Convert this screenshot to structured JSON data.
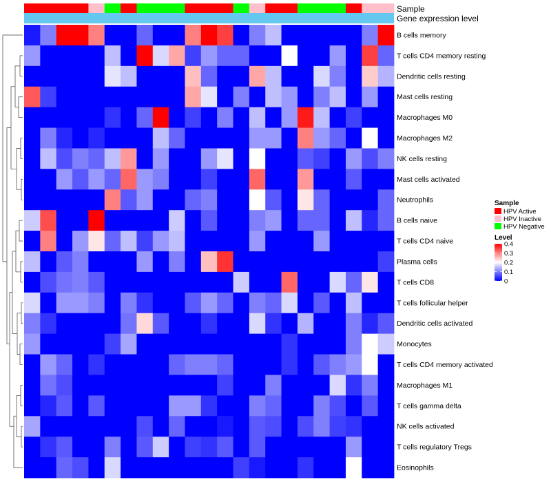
{
  "chart_data": {
    "type": "heatmap",
    "annotation_titles": {
      "sample": "Sample",
      "expression": "Gene expression level"
    },
    "sample_groups": [
      "HPV Active",
      "HPV Active",
      "HPV Active",
      "HPV Active",
      "HPV Inactive",
      "HPV Negative",
      "HPV Active",
      "HPV Negative",
      "HPV Negative",
      "HPV Negative",
      "HPV Active",
      "HPV Active",
      "HPV Active",
      "HPV Negative",
      "HPV Inactive",
      "HPV Active",
      "HPV Active",
      "HPV Negative",
      "HPV Negative",
      "HPV Negative",
      "HPV Active",
      "HPV Inactive",
      "HPV Inactive"
    ],
    "rows": [
      "B cells memory",
      "T cells CD4 memory resting",
      "Dendritic cells resting",
      "Mast cells resting",
      "Macrophages M0",
      "Macrophages M2",
      "NK cells resting",
      "Mast cells activated",
      "Neutrophils",
      "B cells naive",
      "T cells CD4 naive",
      "Plasma cells",
      "T cells CD8",
      "T cells follicular helper",
      "Dendritic cells activated",
      "Monocytes",
      "T cells CD4 memory activated",
      "Macrophages M1",
      "T cells gamma delta",
      "NK cells activated",
      "T cells regulatory  Tregs",
      "Eosinophils"
    ],
    "values": [
      [
        0.02,
        0.1,
        0.4,
        0.4,
        0.3,
        0.0,
        0.0,
        0.08,
        0.0,
        0.0,
        0.3,
        0.4,
        0.35,
        0.0,
        0.1,
        0.15,
        0.0,
        0.0,
        0.0,
        0.0,
        0.0,
        0.1,
        0.4
      ],
      [
        0.12,
        0.0,
        0.0,
        0.0,
        0.0,
        0.15,
        0.0,
        0.4,
        0.17,
        0.27,
        0.05,
        0.12,
        0.08,
        0.08,
        0.0,
        0.0,
        0.2,
        0.0,
        0.0,
        0.12,
        0.0,
        0.35,
        0.08
      ],
      [
        0.0,
        0.0,
        0.0,
        0.0,
        0.0,
        0.18,
        0.15,
        0.0,
        0.0,
        0.0,
        0.25,
        0.08,
        0.0,
        0.0,
        0.27,
        0.15,
        0.0,
        0.0,
        0.17,
        0.1,
        0.0,
        0.24,
        0.14
      ],
      [
        0.33,
        0.05,
        0.0,
        0.0,
        0.0,
        0.0,
        0.0,
        0.0,
        0.0,
        0.0,
        0.27,
        0.18,
        0.0,
        0.1,
        0.0,
        0.15,
        0.12,
        0.0,
        0.1,
        0.15,
        0.0,
        0.12,
        0.0
      ],
      [
        0.0,
        0.0,
        0.0,
        0.0,
        0.0,
        0.04,
        0.0,
        0.08,
        0.4,
        0.0,
        0.05,
        0.0,
        0.1,
        0.0,
        0.15,
        0.0,
        0.12,
        0.38,
        0.15,
        0.0,
        0.05,
        0.0,
        0.0
      ],
      [
        0.0,
        0.1,
        0.03,
        0.0,
        0.03,
        0.0,
        0.0,
        0.0,
        0.15,
        0.08,
        0.0,
        0.0,
        0.0,
        0.0,
        0.12,
        0.12,
        0.0,
        0.3,
        0.12,
        0.08,
        0.0,
        0.2,
        0.0
      ],
      [
        0.0,
        0.15,
        0.06,
        0.1,
        0.08,
        0.15,
        0.28,
        0.0,
        0.12,
        0.0,
        0.0,
        0.12,
        0.18,
        0.0,
        0.2,
        0.0,
        0.0,
        0.07,
        0.05,
        0.0,
        0.12,
        0.06,
        0.1
      ],
      [
        0.0,
        0.0,
        0.12,
        0.07,
        0.12,
        0.08,
        0.32,
        0.12,
        0.1,
        0.0,
        0.0,
        0.05,
        0.0,
        0.0,
        0.32,
        0.0,
        0.0,
        0.28,
        0.0,
        0.0,
        0.07,
        0.0,
        0.0
      ],
      [
        0.0,
        0.0,
        0.0,
        0.0,
        0.0,
        0.3,
        0.07,
        0.12,
        0.0,
        0.0,
        0.08,
        0.1,
        0.0,
        0.0,
        0.2,
        0.07,
        0.0,
        0.22,
        0.08,
        0.0,
        0.0,
        0.0,
        0.08
      ],
      [
        0.16,
        0.34,
        0.0,
        0.0,
        0.4,
        0.0,
        0.0,
        0.0,
        0.0,
        0.16,
        0.0,
        0.07,
        0.0,
        0.0,
        0.1,
        0.12,
        0.0,
        0.08,
        0.08,
        0.0,
        0.15,
        0.03,
        0.08
      ],
      [
        0.0,
        0.3,
        0.0,
        0.12,
        0.22,
        0.08,
        0.15,
        0.05,
        0.12,
        0.15,
        0.0,
        0.0,
        0.0,
        0.0,
        0.12,
        0.0,
        0.0,
        0.0,
        0.12,
        0.0,
        0.0,
        0.0,
        0.0
      ],
      [
        0.15,
        0.0,
        0.07,
        0.1,
        0.0,
        0.0,
        0.0,
        0.12,
        0.0,
        0.1,
        0.0,
        0.25,
        0.36,
        0.0,
        0.0,
        0.0,
        0.0,
        0.0,
        0.0,
        0.0,
        0.0,
        0.0,
        0.05
      ],
      [
        0.0,
        0.06,
        0.09,
        0.1,
        0.07,
        0.0,
        0.0,
        0.0,
        0.0,
        0.0,
        0.0,
        0.0,
        0.0,
        0.16,
        0.0,
        0.0,
        0.32,
        0.0,
        0.0,
        0.17,
        0.08,
        0.22,
        0.0
      ],
      [
        0.17,
        0.0,
        0.12,
        0.12,
        0.1,
        0.0,
        0.1,
        0.04,
        0.0,
        0.0,
        0.07,
        0.12,
        0.08,
        0.0,
        0.1,
        0.08,
        0.17,
        0.0,
        0.07,
        0.0,
        0.15,
        0.0,
        0.0
      ],
      [
        0.1,
        0.04,
        0.0,
        0.0,
        0.0,
        0.0,
        0.09,
        0.23,
        0.07,
        0.0,
        0.0,
        0.04,
        0.0,
        0.0,
        0.17,
        0.04,
        0.0,
        0.14,
        0.0,
        0.0,
        0.1,
        0.03,
        0.07
      ],
      [
        0.12,
        0.0,
        0.0,
        0.0,
        0.0,
        0.05,
        0.13,
        0.0,
        0.0,
        0.0,
        0.0,
        0.0,
        0.0,
        0.0,
        0.0,
        0.0,
        0.04,
        0.0,
        0.0,
        0.0,
        0.1,
        0.2,
        0.16
      ],
      [
        0.0,
        0.12,
        0.08,
        0.0,
        0.04,
        0.0,
        0.0,
        0.0,
        0.0,
        0.08,
        0.1,
        0.1,
        0.08,
        0.0,
        0.0,
        0.0,
        0.04,
        0.0,
        0.07,
        0.1,
        0.12,
        0.2,
        0.0
      ],
      [
        0.0,
        0.09,
        0.06,
        0.0,
        0.0,
        0.0,
        0.0,
        0.0,
        0.0,
        0.0,
        0.0,
        0.0,
        0.05,
        0.0,
        0.0,
        0.1,
        0.0,
        0.0,
        0.0,
        0.17,
        0.04,
        0.1,
        0.0
      ],
      [
        0.0,
        0.03,
        0.07,
        0.0,
        0.07,
        0.0,
        0.0,
        0.0,
        0.0,
        0.12,
        0.12,
        0.04,
        0.0,
        0.0,
        0.1,
        0.08,
        0.0,
        0.0,
        0.1,
        0.06,
        0.0,
        0.07,
        0.0
      ],
      [
        0.13,
        0.0,
        0.0,
        0.0,
        0.0,
        0.0,
        0.0,
        0.06,
        0.0,
        0.08,
        0.0,
        0.0,
        0.02,
        0.0,
        0.07,
        0.06,
        0.0,
        0.06,
        0.1,
        0.05,
        0.04,
        0.0,
        0.0
      ],
      [
        0.0,
        0.04,
        0.07,
        0.0,
        0.0,
        0.1,
        0.0,
        0.07,
        0.16,
        0.0,
        0.05,
        0.04,
        0.07,
        0.0,
        0.07,
        0.0,
        0.0,
        0.0,
        0.0,
        0.0,
        0.12,
        0.0,
        0.0
      ],
      [
        0.0,
        0.0,
        0.08,
        0.06,
        0.0,
        0.17,
        0.0,
        0.0,
        0.0,
        0.0,
        0.0,
        0.0,
        0.0,
        0.05,
        0.02,
        0.0,
        0.0,
        0.04,
        0.0,
        0.0,
        0.2,
        0.0,
        0.0
      ]
    ],
    "legend": {
      "sample_title": "Sample",
      "sample_entries": [
        {
          "label": "HPV Active",
          "color": "#ff0000"
        },
        {
          "label": "HPV Inactive",
          "color": "#ffc0cb"
        },
        {
          "label": "HPV Negative",
          "color": "#00ff00"
        }
      ],
      "level_title": "Level",
      "level_range": [
        0,
        0.4
      ],
      "level_ticks": [
        "0.4",
        "0.3",
        "0.2",
        "0.1",
        "0"
      ],
      "level_tick_values": [
        0.4,
        0.3,
        0.2,
        0.1,
        0
      ]
    },
    "colors": {
      "low": "#0000ff",
      "mid": "#ffffff",
      "high": "#ff0000",
      "expression_bar": "#64c8f0",
      "dendrogram": "#555555"
    }
  }
}
